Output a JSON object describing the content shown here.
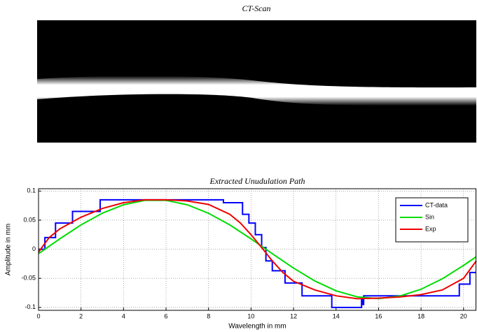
{
  "chart_data": [
    {
      "type": "image",
      "title": "CT-Scan"
    },
    {
      "type": "line",
      "title": "Extracted Unudulation Path",
      "xlabel": "Wavelength in mm",
      "ylabel": "Amplitude in mm",
      "xlim": [
        0,
        20.6
      ],
      "ylim": [
        -0.105,
        0.104
      ],
      "xticks": [
        0,
        2,
        4,
        6,
        8,
        10,
        12,
        14,
        16,
        18,
        20
      ],
      "yticks": [
        -0.1,
        -0.05,
        0,
        0.05,
        0.1
      ],
      "grid": true,
      "legend": "upper right",
      "series": [
        {
          "name": "CT-data",
          "color": "#0000ff",
          "x": [
            0,
            0.3,
            0.3,
            0.8,
            0.8,
            1.6,
            1.6,
            2.9,
            2.9,
            8.7,
            8.7,
            9.6,
            9.6,
            9.9,
            9.9,
            10.2,
            10.2,
            10.5,
            10.5,
            10.7,
            10.7,
            11.0,
            11.0,
            11.6,
            11.6,
            12.4,
            12.4,
            13.8,
            13.8,
            15.2,
            15.2,
            15.25,
            15.25,
            15.3,
            15.3,
            19.8,
            19.8,
            20.3,
            20.3,
            20.6
          ],
          "values": [
            0,
            0,
            0.02,
            0.02,
            0.045,
            0.045,
            0.065,
            0.065,
            0.085,
            0.085,
            0.08,
            0.08,
            0.06,
            0.06,
            0.045,
            0.045,
            0.025,
            0.025,
            0.003,
            0.003,
            -0.02,
            -0.02,
            -0.037,
            -0.037,
            -0.058,
            -0.058,
            -0.08,
            -0.08,
            -0.1,
            -0.1,
            -0.085,
            -0.085,
            -0.095,
            -0.095,
            -0.08,
            -0.08,
            -0.06,
            -0.06,
            -0.04,
            -0.04
          ]
        },
        {
          "name": "Sin",
          "color": "#00dd00",
          "x": [
            0,
            1,
            2,
            3,
            4,
            5,
            6,
            7,
            8,
            9,
            10,
            11,
            12,
            13,
            14,
            15,
            16,
            17,
            18,
            19,
            20,
            20.6
          ],
          "values": [
            -0.0077,
            0.0178,
            0.0418,
            0.0619,
            0.0764,
            0.084,
            0.084,
            0.0764,
            0.0618,
            0.0418,
            0.0178,
            -0.0077,
            -0.0324,
            -0.0545,
            -0.0714,
            -0.0819,
            -0.0849,
            -0.0805,
            -0.0688,
            -0.0508,
            -0.0278,
            -0.0128
          ]
        },
        {
          "name": "Exp",
          "color": "#ee0000",
          "x": [
            0,
            0.5,
            1,
            2,
            3,
            4,
            5,
            6,
            7,
            8,
            9,
            9.5,
            10,
            10.5,
            11,
            11.5,
            12,
            13,
            14,
            15,
            16,
            17,
            18,
            19,
            20,
            20.6
          ],
          "values": [
            -0.005,
            0.02,
            0.035,
            0.055,
            0.07,
            0.08,
            0.085,
            0.085,
            0.083,
            0.077,
            0.06,
            0.045,
            0.025,
            0.003,
            -0.02,
            -0.04,
            -0.055,
            -0.07,
            -0.08,
            -0.085,
            -0.084,
            -0.082,
            -0.078,
            -0.07,
            -0.05,
            -0.02
          ]
        }
      ]
    }
  ]
}
